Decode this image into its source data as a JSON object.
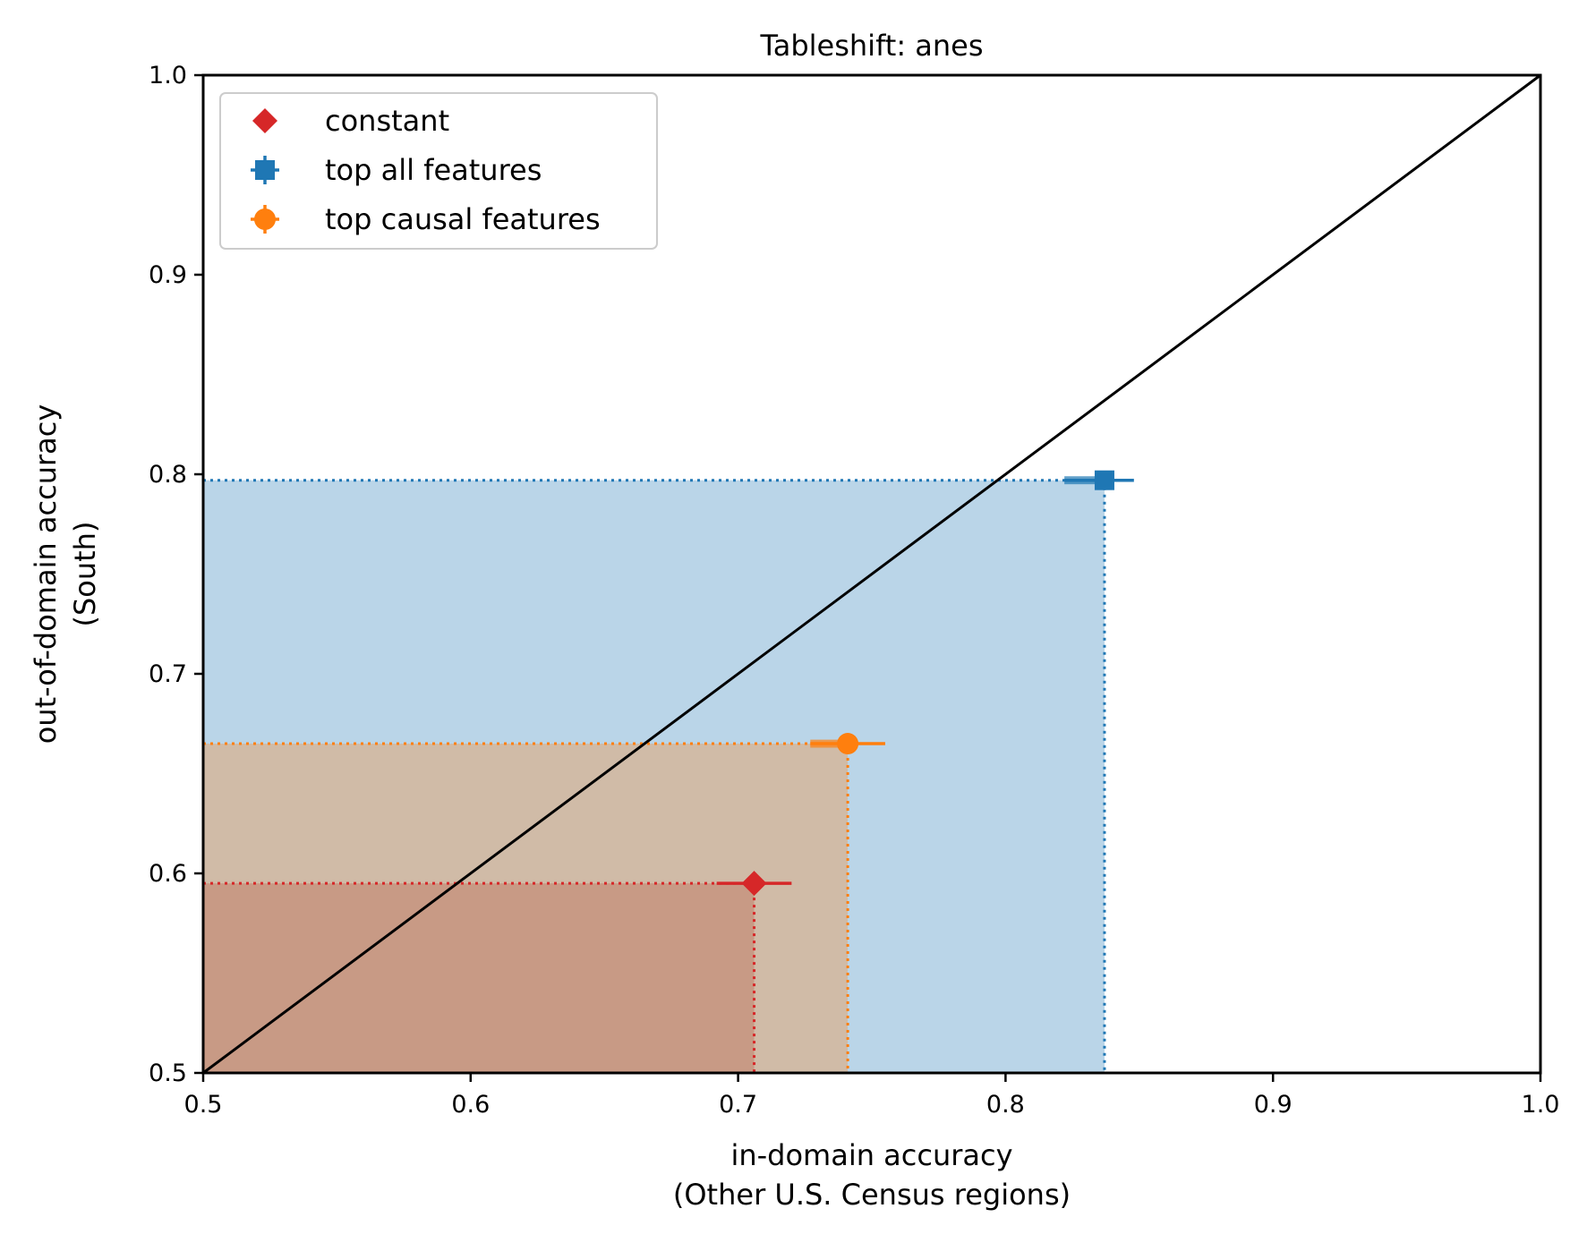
{
  "chart_data": {
    "type": "scatter",
    "title": "Tableshift: anes",
    "xlabel": [
      "in-domain accuracy",
      "(Other U.S. Census regions)"
    ],
    "ylabel": [
      "out-of-domain accuracy",
      "(South)"
    ],
    "xlim": [
      0.5,
      1.0
    ],
    "ylim": [
      0.5,
      1.0
    ],
    "xticks": [
      0.5,
      0.6,
      0.7,
      0.8,
      0.9,
      1.0
    ],
    "yticks": [
      0.5,
      0.6,
      0.7,
      0.8,
      0.9,
      1.0
    ],
    "xtick_labels": [
      "0.5",
      "0.6",
      "0.7",
      "0.8",
      "0.9",
      "1.0"
    ],
    "ytick_labels": [
      "0.5",
      "0.6",
      "0.7",
      "0.8",
      "0.9",
      "1.0"
    ],
    "grid": false,
    "diagonal": true,
    "legend_position": "top-left",
    "series": [
      {
        "name": "top all features",
        "marker": "square",
        "color": "#1f77b4",
        "fill_color": "#bad5e8",
        "x": 0.837,
        "y": 0.797,
        "xerr": [
          0.822,
          0.848
        ],
        "yerr": [
          0.795,
          0.799
        ]
      },
      {
        "name": "top causal features",
        "marker": "circle",
        "color": "#ff7f0e",
        "fill_color": "#d0bba7",
        "x": 0.741,
        "y": 0.665,
        "xerr": [
          0.727,
          0.755
        ],
        "yerr": [
          0.663,
          0.667
        ]
      },
      {
        "name": "constant",
        "marker": "diamond",
        "color": "#d62728",
        "fill_color": "#c89a85",
        "x": 0.706,
        "y": 0.595,
        "xerr": [
          0.692,
          0.72
        ],
        "yerr": [
          0.595,
          0.595
        ]
      }
    ],
    "legend_order": [
      "constant",
      "top all features",
      "top causal features"
    ]
  }
}
